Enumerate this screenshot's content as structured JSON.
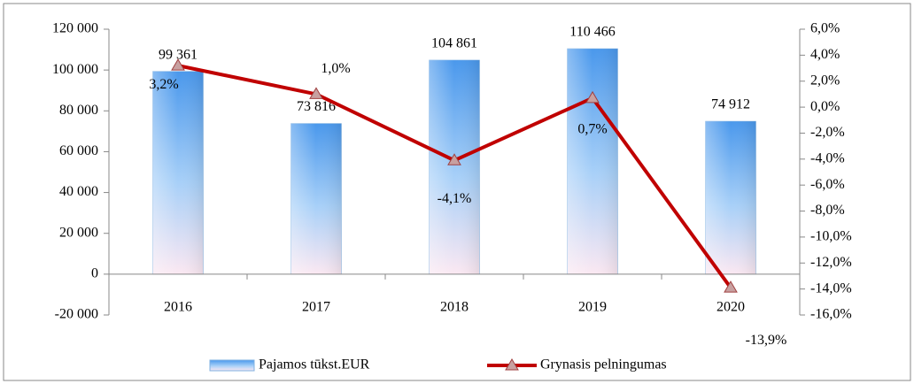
{
  "chart_data": {
    "type": "bar",
    "categories": [
      "2016",
      "2017",
      "2018",
      "2019",
      "2020"
    ],
    "series": [
      {
        "name": "Pajamos tūkst.EUR",
        "type": "bar",
        "color": "#5b9bd5",
        "values": [
          99361,
          73816,
          104861,
          110466,
          74912
        ],
        "value_labels": [
          "99 361",
          "73 816",
          "104 861",
          "110 466",
          "74 912"
        ]
      },
      {
        "name": "Grynasis pelningumas",
        "type": "line",
        "axis": "y2",
        "color": "#c00000",
        "values": [
          3.2,
          1.0,
          -4.1,
          0.7,
          -13.9
        ],
        "value_labels": [
          "3,2%",
          "1,0%",
          "-4,1%",
          "0,7%",
          "-13,9%"
        ]
      }
    ],
    "ylim": [
      -20000,
      120000
    ],
    "yticks": [
      {
        "value": -20000,
        "label": "-20 000"
      },
      0,
      {
        "value": 20000,
        "label": "20 000"
      },
      {
        "value": 40000,
        "label": "40 000"
      },
      {
        "value": 60000,
        "label": "60 000"
      },
      {
        "value": 80000,
        "label": "80 000"
      },
      {
        "value": 100000,
        "label": "100 000"
      },
      {
        "value": 120000,
        "label": "120 000"
      }
    ],
    "y2lim": [
      -16,
      6
    ],
    "y2ticks": [
      {
        "value": -16,
        "label": "-16,0%"
      },
      {
        "value": -14,
        "label": "-14,0%"
      },
      {
        "value": -12,
        "label": "-12,0%"
      },
      {
        "value": -10,
        "label": "-10,0%"
      },
      {
        "value": -8,
        "label": "-8,0%"
      },
      {
        "value": -6,
        "label": "-6,0%"
      },
      {
        "value": -4,
        "label": "-4,0%"
      },
      {
        "value": -2,
        "label": "-2,0%"
      },
      {
        "value": 0,
        "label": "0,0%"
      },
      {
        "value": 2,
        "label": "2,0%"
      },
      {
        "value": 4,
        "label": "4,0%"
      },
      {
        "value": 6,
        "label": "6,0%"
      }
    ],
    "legend": "bottom"
  }
}
